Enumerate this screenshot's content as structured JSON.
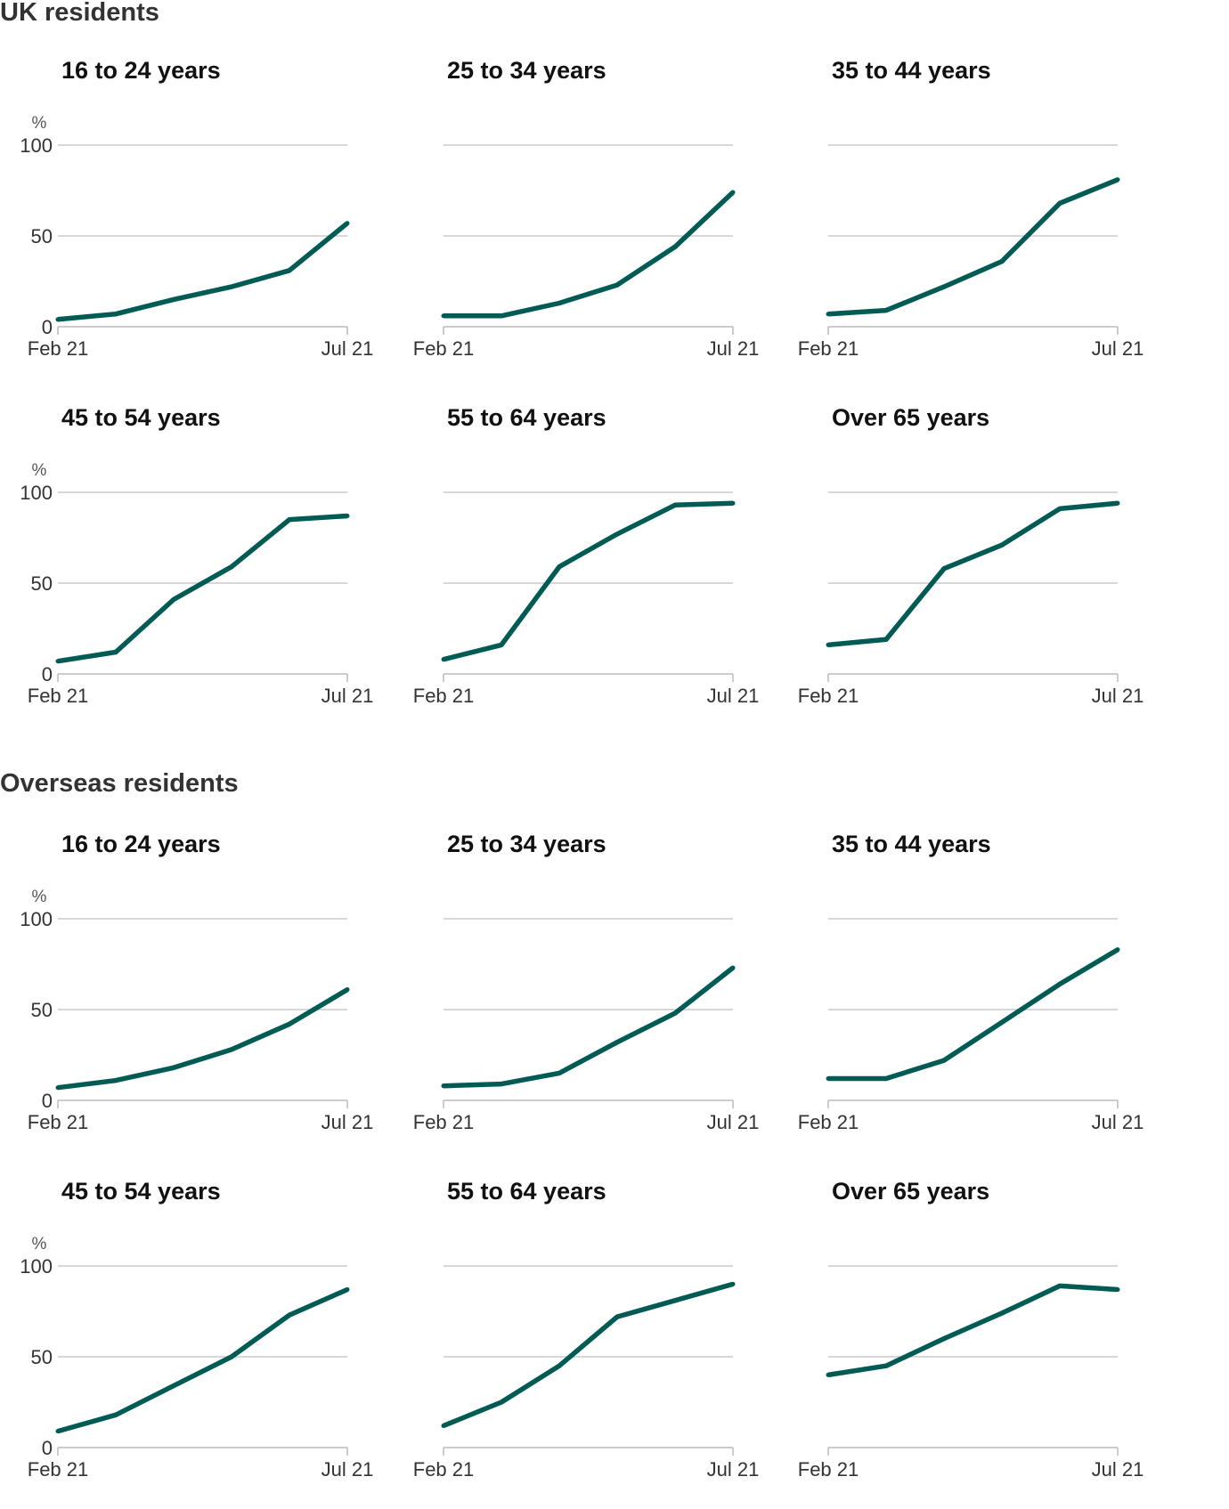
{
  "colors": {
    "line": "#005b55",
    "grid": "#cccccc",
    "axis": "#bbbbbb",
    "text": "#333333"
  },
  "sections": [
    {
      "title": "UK residents",
      "chart_data": [
        {
          "type": "line",
          "title": "16 to 24 years",
          "unit": "%",
          "yticks": [
            "0",
            "50",
            "100"
          ],
          "ylim": [
            0,
            100
          ],
          "xtick_start": "Feb 21",
          "xtick_end": "Jul 21",
          "x": [
            "Feb 21",
            "Mar 21",
            "Apr 21",
            "May 21",
            "Jun 21",
            "Jul 21"
          ],
          "values": [
            4,
            7,
            15,
            22,
            31,
            57
          ]
        },
        {
          "type": "line",
          "title": "25 to 34 years",
          "unit": "",
          "yticks": [],
          "ylim": [
            0,
            100
          ],
          "xtick_start": "Feb 21",
          "xtick_end": "Jul 21",
          "x": [
            "Feb 21",
            "Mar 21",
            "Apr 21",
            "May 21",
            "Jun 21",
            "Jul 21"
          ],
          "values": [
            6,
            6,
            13,
            23,
            44,
            74
          ]
        },
        {
          "type": "line",
          "title": "35 to 44 years",
          "unit": "",
          "yticks": [],
          "ylim": [
            0,
            100
          ],
          "xtick_start": "Feb 21",
          "xtick_end": "Jul 21",
          "x": [
            "Feb 21",
            "Mar 21",
            "Apr 21",
            "May 21",
            "Jun 21",
            "Jul 21"
          ],
          "values": [
            7,
            9,
            22,
            36,
            68,
            81
          ]
        },
        {
          "type": "line",
          "title": "45 to 54 years",
          "unit": "%",
          "yticks": [
            "0",
            "50",
            "100"
          ],
          "ylim": [
            0,
            100
          ],
          "xtick_start": "Feb 21",
          "xtick_end": "Jul 21",
          "x": [
            "Feb 21",
            "Mar 21",
            "Apr 21",
            "May 21",
            "Jun 21",
            "Jul 21"
          ],
          "values": [
            7,
            12,
            41,
            59,
            85,
            87
          ]
        },
        {
          "type": "line",
          "title": "55 to 64 years",
          "unit": "",
          "yticks": [],
          "ylim": [
            0,
            100
          ],
          "xtick_start": "Feb 21",
          "xtick_end": "Jul 21",
          "x": [
            "Feb 21",
            "Mar 21",
            "Apr 21",
            "May 21",
            "Jun 21",
            "Jul 21"
          ],
          "values": [
            8,
            16,
            59,
            77,
            93,
            94
          ]
        },
        {
          "type": "line",
          "title": "Over 65 years",
          "unit": "",
          "yticks": [],
          "ylim": [
            0,
            100
          ],
          "xtick_start": "Feb 21",
          "xtick_end": "Jul 21",
          "x": [
            "Feb 21",
            "Mar 21",
            "Apr 21",
            "May 21",
            "Jun 21",
            "Jul 21"
          ],
          "values": [
            16,
            19,
            58,
            71,
            91,
            94
          ]
        }
      ]
    },
    {
      "title": "Overseas residents",
      "chart_data": [
        {
          "type": "line",
          "title": "16 to 24 years",
          "unit": "%",
          "yticks": [
            "0",
            "50",
            "100"
          ],
          "ylim": [
            0,
            100
          ],
          "xtick_start": "Feb 21",
          "xtick_end": "Jul 21",
          "x": [
            "Feb 21",
            "Mar 21",
            "Apr 21",
            "May 21",
            "Jun 21",
            "Jul 21"
          ],
          "values": [
            7,
            11,
            18,
            28,
            42,
            61
          ]
        },
        {
          "type": "line",
          "title": "25 to 34 years",
          "unit": "",
          "yticks": [],
          "ylim": [
            0,
            100
          ],
          "xtick_start": "Feb 21",
          "xtick_end": "Jul 21",
          "x": [
            "Feb 21",
            "Mar 21",
            "Apr 21",
            "May 21",
            "Jun 21",
            "Jul 21"
          ],
          "values": [
            8,
            9,
            15,
            32,
            48,
            73
          ]
        },
        {
          "type": "line",
          "title": "35 to 44 years",
          "unit": "",
          "yticks": [],
          "ylim": [
            0,
            100
          ],
          "xtick_start": "Feb 21",
          "xtick_end": "Jul 21",
          "x": [
            "Feb 21",
            "Mar 21",
            "Apr 21",
            "May 21",
            "Jun 21",
            "Jul 21"
          ],
          "values": [
            12,
            12,
            22,
            43,
            64,
            83
          ]
        },
        {
          "type": "line",
          "title": "45 to 54 years",
          "unit": "%",
          "yticks": [
            "0",
            "50",
            "100"
          ],
          "ylim": [
            0,
            100
          ],
          "xtick_start": "Feb 21",
          "xtick_end": "Jul 21",
          "x": [
            "Feb 21",
            "Mar 21",
            "Apr 21",
            "May 21",
            "Jun 21",
            "Jul 21"
          ],
          "values": [
            9,
            18,
            34,
            50,
            73,
            87
          ]
        },
        {
          "type": "line",
          "title": "55 to 64 years",
          "unit": "",
          "yticks": [],
          "ylim": [
            0,
            100
          ],
          "xtick_start": "Feb 21",
          "xtick_end": "Jul 21",
          "x": [
            "Feb 21",
            "Mar 21",
            "Apr 21",
            "May 21",
            "Jun 21",
            "Jul 21"
          ],
          "values": [
            12,
            25,
            45,
            72,
            81,
            90
          ]
        },
        {
          "type": "line",
          "title": "Over 65 years",
          "unit": "",
          "yticks": [],
          "ylim": [
            0,
            100
          ],
          "xtick_start": "Feb 21",
          "xtick_end": "Jul 21",
          "x": [
            "Feb 21",
            "Mar 21",
            "Apr 21",
            "May 21",
            "Jun 21",
            "Jul 21"
          ],
          "values": [
            40,
            45,
            60,
            74,
            89,
            87
          ]
        }
      ]
    }
  ]
}
